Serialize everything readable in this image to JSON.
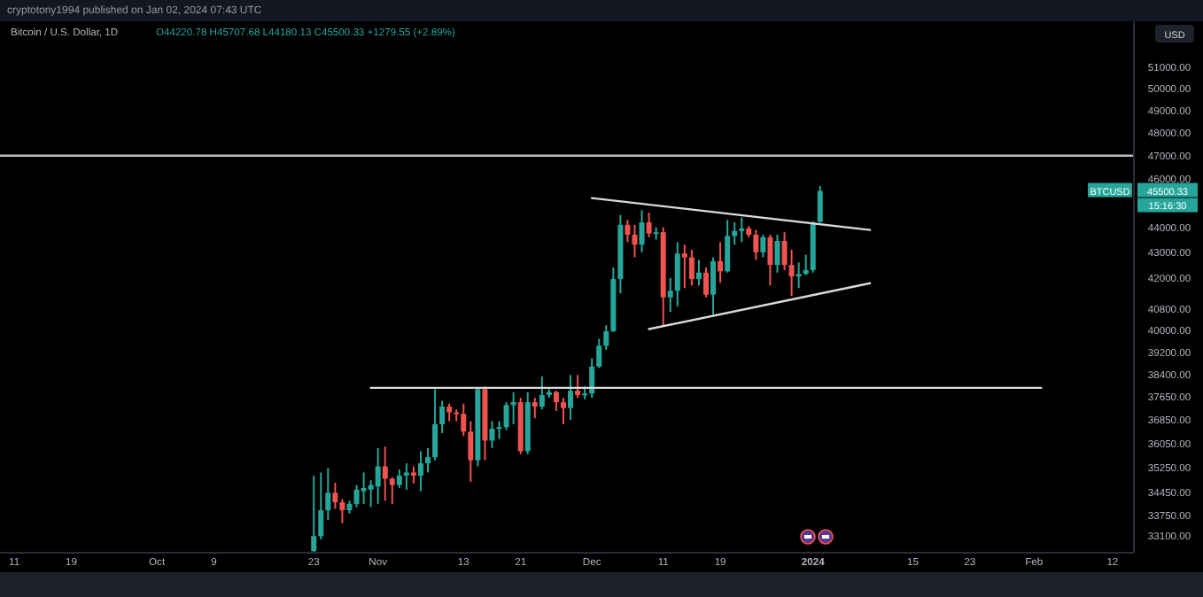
{
  "chart_data": {
    "type": "candlestick",
    "title": "Bitcoin / U.S. Dollar, 1D",
    "subtitle": "O44220.78 H45707.68 L44180.13 C45500.33 +1279.55 (+2.89%)",
    "annotations": [
      "cryptotony1994 published on Jan 02, 2024 07:43 UTC",
      "USD",
      "BTCUSD",
      "45500.33",
      "15:16:30"
    ],
    "log": true,
    "grid": false,
    "xlim": [
      "2023-09-09",
      "2024-02-15"
    ],
    "xticks": [
      {
        "value": "2023-09-11",
        "label": "11"
      },
      {
        "value": "2023-09-19",
        "label": "19"
      },
      {
        "value": "2023-10-01",
        "label": "Oct"
      },
      {
        "value": "2023-10-09",
        "label": "9"
      },
      {
        "value": "2023-10-23",
        "label": "23"
      },
      {
        "value": "2023-11-01",
        "label": "Nov"
      },
      {
        "value": "2023-11-13",
        "label": "13"
      },
      {
        "value": "2023-11-21",
        "label": "21"
      },
      {
        "value": "2023-12-01",
        "label": "Dec"
      },
      {
        "value": "2023-12-11",
        "label": "11"
      },
      {
        "value": "2023-12-19",
        "label": "19"
      },
      {
        "value": "2024-01-01",
        "label": "2024"
      },
      {
        "value": "2024-01-15",
        "label": "15"
      },
      {
        "value": "2024-01-23",
        "label": "23"
      },
      {
        "value": "2024-02-01",
        "label": "Feb"
      },
      {
        "value": "2024-02-12",
        "label": "12"
      }
    ],
    "ylim": [
      32600,
      53200
    ],
    "yticks": [
      {
        "value": 51000,
        "label": "51000.00"
      },
      {
        "value": 50000,
        "label": "50000.00"
      },
      {
        "value": 49000,
        "label": "49000.00"
      },
      {
        "value": 48000,
        "label": "48000.00"
      },
      {
        "value": 47000,
        "label": "47000.00"
      },
      {
        "value": 46000,
        "label": "46000.00"
      },
      {
        "value": 44000,
        "label": "44000.00"
      },
      {
        "value": 43000,
        "label": "43000.00"
      },
      {
        "value": 42000,
        "label": "42000.00"
      },
      {
        "value": 40800,
        "label": "40800.00"
      },
      {
        "value": 40000,
        "label": "40000.00"
      },
      {
        "value": 39200,
        "label": "39200.00"
      },
      {
        "value": 38400,
        "label": "38400.00"
      },
      {
        "value": 37650,
        "label": "37650.00"
      },
      {
        "value": 36850,
        "label": "36850.00"
      },
      {
        "value": 36050,
        "label": "36050.00"
      },
      {
        "value": 35250,
        "label": "35250.00"
      },
      {
        "value": 34450,
        "label": "34450.00"
      },
      {
        "value": 33750,
        "label": "33750.00"
      },
      {
        "value": 33100,
        "label": "33100.00"
      }
    ],
    "ref_lines": [
      {
        "axis": "y",
        "value": 47000,
        "color": "#bdbdbd"
      }
    ],
    "x": [
      "2023-10-23",
      "2023-10-24",
      "2023-10-25",
      "2023-10-26",
      "2023-10-27",
      "2023-10-28",
      "2023-10-29",
      "2023-10-30",
      "2023-10-31",
      "2023-11-01",
      "2023-11-02",
      "2023-11-03",
      "2023-11-04",
      "2023-11-05",
      "2023-11-06",
      "2023-11-07",
      "2023-11-08",
      "2023-11-09",
      "2023-11-10",
      "2023-11-11",
      "2023-11-12",
      "2023-11-13",
      "2023-11-14",
      "2023-11-15",
      "2023-11-16",
      "2023-11-17",
      "2023-11-18",
      "2023-11-19",
      "2023-11-20",
      "2023-11-21",
      "2023-11-22",
      "2023-11-23",
      "2023-11-24",
      "2023-11-25",
      "2023-11-26",
      "2023-11-27",
      "2023-11-28",
      "2023-11-29",
      "2023-11-30",
      "2023-12-01",
      "2023-12-02",
      "2023-12-03",
      "2023-12-04",
      "2023-12-05",
      "2023-12-06",
      "2023-12-07",
      "2023-12-08",
      "2023-12-09",
      "2023-12-10",
      "2023-12-11",
      "2023-12-12",
      "2023-12-13",
      "2023-12-14",
      "2023-12-15",
      "2023-12-16",
      "2023-12-17",
      "2023-12-18",
      "2023-12-19",
      "2023-12-20",
      "2023-12-21",
      "2023-12-22",
      "2023-12-23",
      "2023-12-24",
      "2023-12-25",
      "2023-12-26",
      "2023-12-27",
      "2023-12-28",
      "2023-12-29",
      "2023-12-30",
      "2023-12-31",
      "2024-01-01",
      "2024-01-02"
    ],
    "ohlc": [
      [
        32650,
        35000,
        32620,
        33100
      ],
      [
        33100,
        35100,
        33000,
        33900
      ],
      [
        33900,
        35250,
        33600,
        34450
      ],
      [
        34450,
        34770,
        33950,
        34150
      ],
      [
        34150,
        34250,
        33500,
        33900
      ],
      [
        33900,
        34200,
        33800,
        34100
      ],
      [
        34100,
        34700,
        34000,
        34550
      ],
      [
        34500,
        35100,
        34100,
        34600
      ],
      [
        34550,
        34850,
        34000,
        34700
      ],
      [
        34650,
        35900,
        34100,
        35300
      ],
      [
        35300,
        35950,
        34200,
        34900
      ],
      [
        34900,
        34950,
        34100,
        34700
      ],
      [
        34700,
        35200,
        34600,
        35000
      ],
      [
        35000,
        35400,
        34550,
        35100
      ],
      [
        35100,
        35300,
        34750,
        35000
      ],
      [
        35000,
        35800,
        34500,
        35400
      ],
      [
        35400,
        35900,
        35100,
        35600
      ],
      [
        35600,
        37900,
        35500,
        36700
      ],
      [
        36700,
        37500,
        36400,
        37300
      ],
      [
        37300,
        37400,
        36800,
        37100
      ],
      [
        37100,
        37200,
        36800,
        37050
      ],
      [
        37050,
        37400,
        36300,
        36450
      ],
      [
        36450,
        36800,
        34800,
        35500
      ],
      [
        35500,
        37950,
        35300,
        37900
      ],
      [
        37900,
        38000,
        35500,
        36150
      ],
      [
        36150,
        36800,
        35900,
        36550
      ],
      [
        36550,
        36800,
        36200,
        36600
      ],
      [
        36600,
        37450,
        36500,
        37350
      ],
      [
        37350,
        37800,
        36700,
        37450
      ],
      [
        37450,
        37600,
        35700,
        35800
      ],
      [
        35800,
        37800,
        35700,
        37450
      ],
      [
        37450,
        37600,
        36900,
        37300
      ],
      [
        37300,
        38350,
        37200,
        37700
      ],
      [
        37700,
        37900,
        37600,
        37800
      ],
      [
        37800,
        37850,
        37150,
        37450
      ],
      [
        37450,
        37600,
        36700,
        37250
      ],
      [
        37250,
        38400,
        36850,
        37850
      ],
      [
        37850,
        38400,
        37600,
        37700
      ],
      [
        37700,
        38000,
        37550,
        37750
      ],
      [
        37750,
        39000,
        37600,
        38700
      ],
      [
        38700,
        39700,
        38650,
        39450
      ],
      [
        39450,
        40200,
        39300,
        39980
      ],
      [
        39980,
        42400,
        39950,
        41950
      ],
      [
        41950,
        44500,
        41400,
        44100
      ],
      [
        44100,
        44300,
        43400,
        43700
      ],
      [
        43700,
        44100,
        42800,
        43300
      ],
      [
        43300,
        44700,
        43000,
        44200
      ],
      [
        44200,
        44600,
        43600,
        43750
      ],
      [
        43750,
        44000,
        43500,
        43800
      ],
      [
        43800,
        44000,
        40200,
        41250
      ],
      [
        41250,
        42000,
        40700,
        41500
      ],
      [
        41500,
        43400,
        40900,
        42950
      ],
      [
        42950,
        43300,
        41600,
        42800
      ],
      [
        42800,
        43100,
        41700,
        41950
      ],
      [
        41950,
        42700,
        41700,
        42200
      ],
      [
        42200,
        42400,
        41250,
        41350
      ],
      [
        41350,
        42800,
        40600,
        42650
      ],
      [
        42650,
        43400,
        41800,
        42250
      ],
      [
        42250,
        44300,
        42200,
        43650
      ],
      [
        43650,
        44200,
        43300,
        43850
      ],
      [
        43850,
        44400,
        43400,
        43950
      ],
      [
        43950,
        44050,
        43600,
        43700
      ],
      [
        43700,
        43900,
        42700,
        43000
      ],
      [
        43000,
        43700,
        42800,
        43600
      ],
      [
        43600,
        43700,
        41700,
        42500
      ],
      [
        42500,
        43700,
        42200,
        43450
      ],
      [
        43450,
        43800,
        42300,
        42500
      ],
      [
        42500,
        43100,
        41300,
        42050
      ],
      [
        42050,
        42600,
        41600,
        42150
      ],
      [
        42150,
        42900,
        42100,
        42300
      ],
      [
        42300,
        44250,
        42200,
        44200
      ],
      [
        44220.78,
        45707.68,
        44180.13,
        45500.33
      ]
    ],
    "series": [
      {
        "type": "line",
        "color": "#d9d9d9",
        "x": [
          "2023-10-31",
          "2024-02-02"
        ],
        "values": [
          37950,
          37950
        ]
      },
      {
        "type": "line",
        "color": "#d9d9d9",
        "x": [
          "2023-12-01",
          "2024-01-09"
        ],
        "values": [
          45200,
          43890
        ]
      },
      {
        "type": "line",
        "color": "#d9d9d9",
        "x": [
          "2023-12-09",
          "2024-01-09"
        ],
        "values": [
          40060,
          41790
        ]
      }
    ]
  }
}
